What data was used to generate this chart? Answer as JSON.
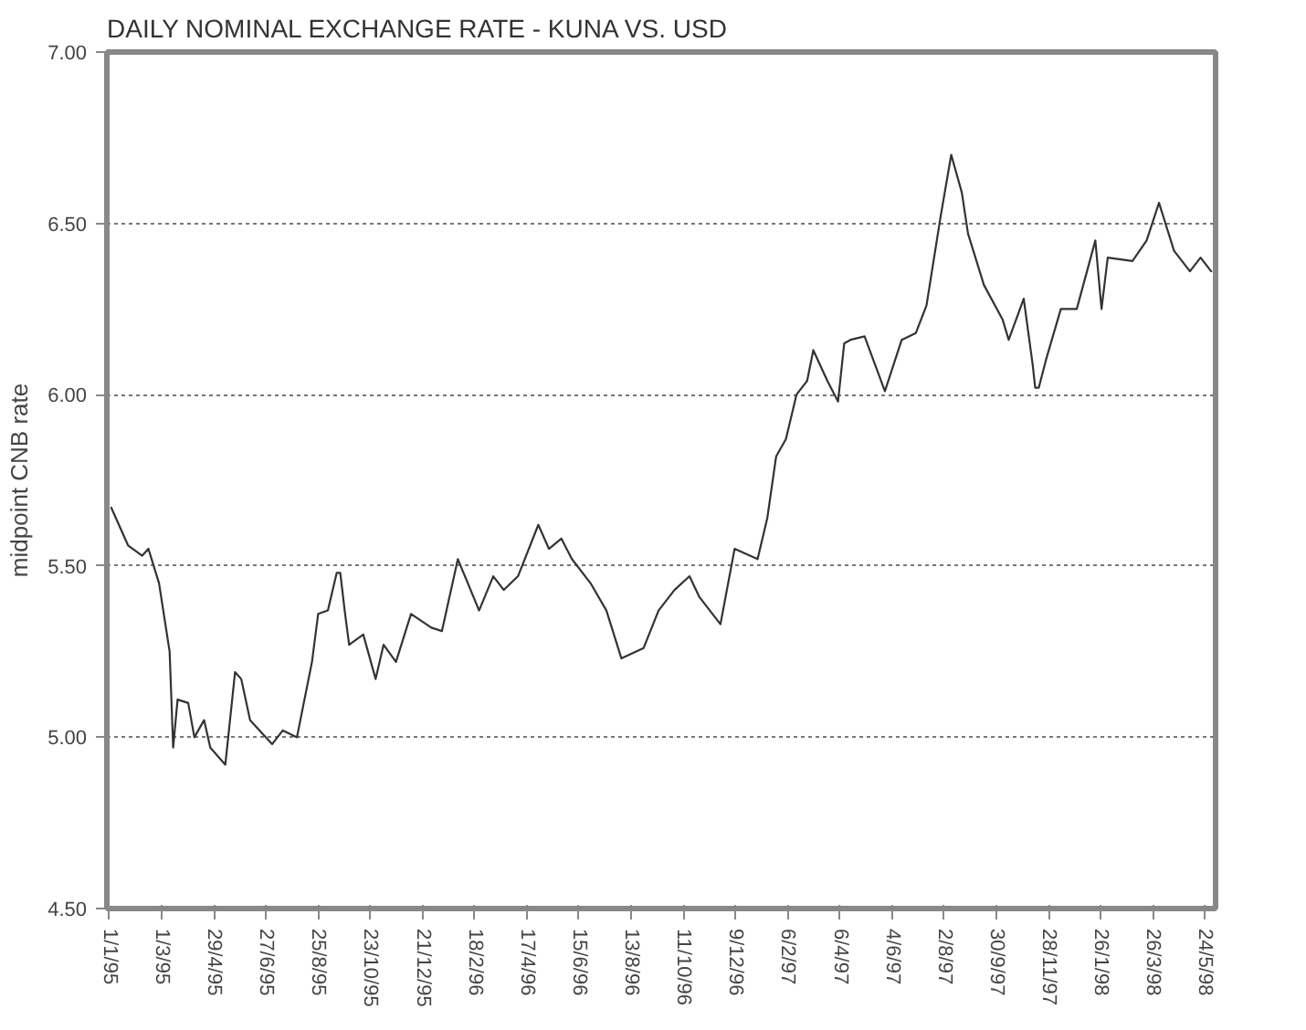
{
  "chart_data": {
    "type": "line",
    "title": "DAILY NOMINAL EXCHANGE RATE - KUNA VS. USD",
    "ylabel": "midpoint CNB rate",
    "x": [
      "1995-01-03",
      "1995-01-22",
      "1995-02-07",
      "1995-02-14",
      "1995-02-26",
      "1995-03-10",
      "1995-03-14",
      "1995-03-19",
      "1995-03-31",
      "1995-04-07",
      "1995-04-18",
      "1995-04-25",
      "1995-05-12",
      "1995-05-23",
      "1995-05-30",
      "1995-06-09",
      "1995-07-04",
      "1995-07-16",
      "1995-08-01",
      "1995-08-18",
      "1995-08-25",
      "1995-09-05",
      "1995-09-15",
      "1995-09-19",
      "1995-09-24",
      "1995-09-29",
      "1995-10-15",
      "1995-10-29",
      "1995-11-07",
      "1995-11-21",
      "1995-12-08",
      "1995-12-31",
      "1996-01-12",
      "1996-01-30",
      "1996-02-23",
      "1996-03-10",
      "1996-03-22",
      "1996-04-07",
      "1996-04-30",
      "1996-05-12",
      "1996-05-26",
      "1996-06-07",
      "1996-06-28",
      "1996-07-16",
      "1996-08-02",
      "1996-08-27",
      "1996-09-13",
      "1996-10-01",
      "1996-10-18",
      "1996-10-29",
      "1996-11-22",
      "1996-12-08",
      "1997-01-03",
      "1997-01-14",
      "1997-01-24",
      "1997-02-04",
      "1997-02-16",
      "1997-02-28",
      "1997-03-07",
      "1997-03-23",
      "1997-04-04",
      "1997-04-11",
      "1997-04-18",
      "1997-05-04",
      "1997-05-27",
      "1997-06-15",
      "1997-07-01",
      "1997-07-13",
      "1997-07-29",
      "1997-08-10",
      "1997-08-22",
      "1997-08-29",
      "1997-09-16",
      "1997-10-07",
      "1997-10-14",
      "1997-10-31",
      "1997-11-10",
      "1997-11-13",
      "1997-11-17",
      "1997-11-25",
      "1997-12-12",
      "1997-12-30",
      "1998-01-20",
      "1998-01-27",
      "1998-02-03",
      "1998-03-03",
      "1998-03-19",
      "1998-04-02",
      "1998-04-19",
      "1998-05-07",
      "1998-05-19",
      "1998-05-31"
    ],
    "series": [
      {
        "color": "#333333",
        "values": [
          5.67,
          5.56,
          5.53,
          5.55,
          5.45,
          5.25,
          4.97,
          5.11,
          5.1,
          5.0,
          5.05,
          4.97,
          4.92,
          5.19,
          5.17,
          5.05,
          4.98,
          5.02,
          5.0,
          5.22,
          5.36,
          5.37,
          5.48,
          5.48,
          5.37,
          5.27,
          5.3,
          5.17,
          5.27,
          5.22,
          5.36,
          5.32,
          5.31,
          5.52,
          5.37,
          5.47,
          5.43,
          5.47,
          5.62,
          5.55,
          5.58,
          5.52,
          5.45,
          5.37,
          5.23,
          5.26,
          5.37,
          5.43,
          5.47,
          5.41,
          5.33,
          5.55,
          5.52,
          5.64,
          5.82,
          5.87,
          6.0,
          6.04,
          6.13,
          6.04,
          5.98,
          6.15,
          6.16,
          6.17,
          6.01,
          6.16,
          6.18,
          6.26,
          6.52,
          6.7,
          6.59,
          6.47,
          6.32,
          6.22,
          6.16,
          6.28,
          6.09,
          6.02,
          6.02,
          6.1,
          6.25,
          6.25,
          6.45,
          6.25,
          6.4,
          6.39,
          6.45,
          6.56,
          6.42,
          6.36,
          6.4,
          6.36
        ]
      }
    ],
    "xlim": [
      "1994-12-29",
      "1998-06-05"
    ],
    "ylim": [
      4.5,
      7.0
    ],
    "xticks": [
      {
        "value": "1995-01-01",
        "label": "1/1/95"
      },
      {
        "value": "1995-03-01",
        "label": "1/3/95"
      },
      {
        "value": "1995-04-29",
        "label": "29/4/95"
      },
      {
        "value": "1995-06-27",
        "label": "27/6/95"
      },
      {
        "value": "1995-08-25",
        "label": "25/8/95"
      },
      {
        "value": "1995-10-23",
        "label": "23/10/95"
      },
      {
        "value": "1995-12-21",
        "label": "21/12/95"
      },
      {
        "value": "1996-02-18",
        "label": "18/2/96"
      },
      {
        "value": "1996-04-17",
        "label": "17/4/96"
      },
      {
        "value": "1996-06-15",
        "label": "15/6/96"
      },
      {
        "value": "1996-08-13",
        "label": "13/8/96"
      },
      {
        "value": "1996-10-11",
        "label": "11/10/96"
      },
      {
        "value": "1996-12-09",
        "label": "9/12/96"
      },
      {
        "value": "1997-02-06",
        "label": "6/2/97"
      },
      {
        "value": "1997-04-06",
        "label": "6/4/97"
      },
      {
        "value": "1997-06-04",
        "label": "4/6/97"
      },
      {
        "value": "1997-08-02",
        "label": "2/8/97"
      },
      {
        "value": "1997-09-30",
        "label": "30/9/97"
      },
      {
        "value": "1997-11-28",
        "label": "28/11/97"
      },
      {
        "value": "1998-01-26",
        "label": "26/1/98"
      },
      {
        "value": "1998-03-26",
        "label": "26/3/98"
      },
      {
        "value": "1998-05-24",
        "label": "24/5/98"
      }
    ],
    "yticks": [
      {
        "value": 4.5,
        "label": "4.50"
      },
      {
        "value": 5.0,
        "label": "5.00"
      },
      {
        "value": 5.5,
        "label": "5.50"
      },
      {
        "value": 6.0,
        "label": "6.00"
      },
      {
        "value": 6.5,
        "label": "6.50"
      },
      {
        "value": 7.0,
        "label": "7.00"
      }
    ],
    "grid": "y"
  }
}
